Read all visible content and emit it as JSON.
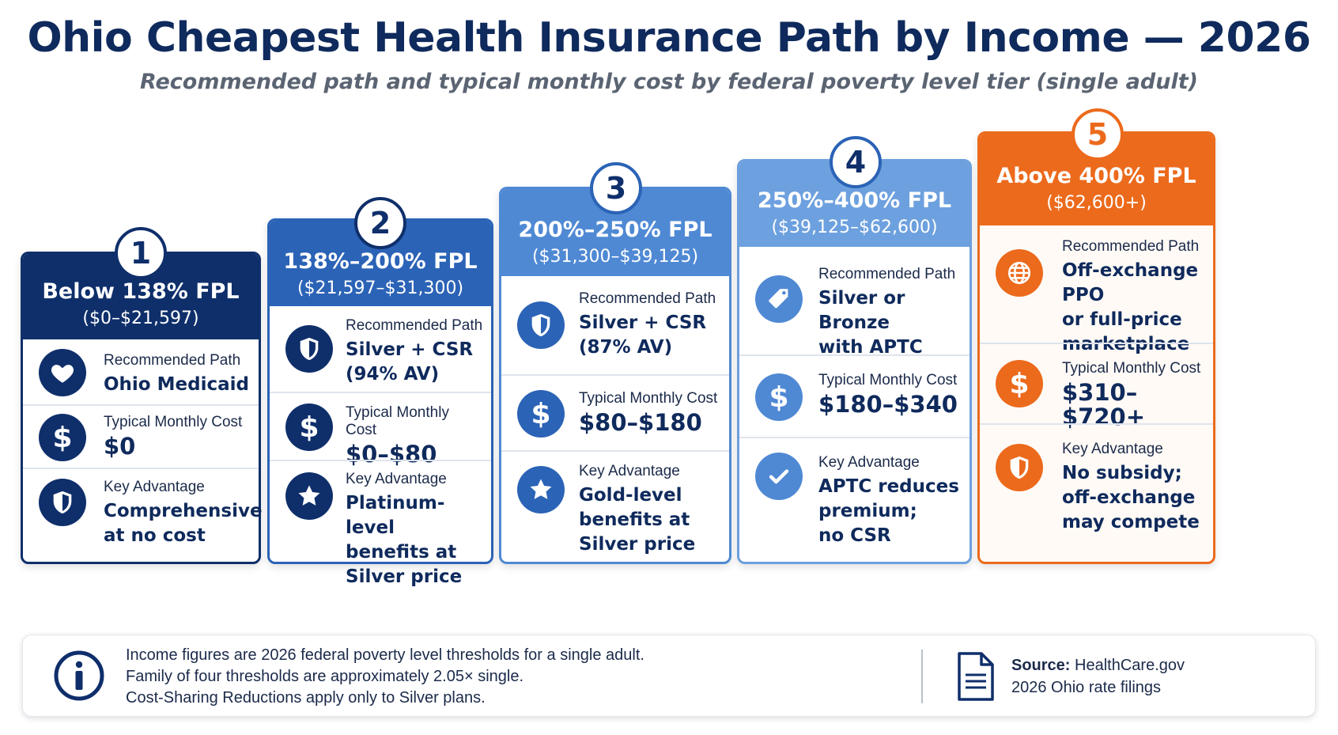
{
  "header": {
    "title": "Ohio Cheapest Health Insurance Path by Income — 2026",
    "subtitle": "Recommended path and typical monthly cost by federal poverty level tier (single adult)"
  },
  "row_labels": {
    "path": "Recommended Path",
    "cost": "Typical Monthly Cost",
    "advantage": "Key Advantage"
  },
  "colors": {
    "tier1": "#0f2f6b",
    "tier2": "#2b63b6",
    "tier3": "#4f89d4",
    "tier4": "#6da0de",
    "tier5": "#ec6a1c"
  },
  "tiers": [
    {
      "number": "1",
      "label": "Below 138% FPL",
      "range": "($0–$21,597)",
      "path": [
        "Ohio Medicaid"
      ],
      "path_icon": "heart-icon",
      "cost": "$0",
      "advantage": [
        "Comprehensive",
        "at no cost"
      ],
      "advantage_icon": "shield-icon"
    },
    {
      "number": "2",
      "label": "138%–200% FPL",
      "range": "($21,597–$31,300)",
      "path": [
        "Silver + CSR",
        "(94% AV)"
      ],
      "path_icon": "shield-icon",
      "cost": "$0–$80",
      "advantage": [
        "Platinum-level",
        "benefits at",
        "Silver price"
      ],
      "advantage_icon": "star-icon"
    },
    {
      "number": "3",
      "label": "200%–250% FPL",
      "range": "($31,300–$39,125)",
      "path": [
        "Silver + CSR",
        "(87% AV)"
      ],
      "path_icon": "shield-icon",
      "cost": "$80–$180",
      "advantage": [
        "Gold-level",
        "benefits at",
        "Silver price"
      ],
      "advantage_icon": "star-icon"
    },
    {
      "number": "4",
      "label": "250%–400% FPL",
      "range": "($39,125–$62,600)",
      "path": [
        "Silver or Bronze",
        "with APTC"
      ],
      "path_icon": "price-tag-icon",
      "cost": "$180–$340",
      "advantage": [
        "APTC reduces",
        "premium;",
        "no CSR"
      ],
      "advantage_icon": "checkmark-icon"
    },
    {
      "number": "5",
      "label": "Above 400% FPL",
      "range": "($62,600+)",
      "path": [
        "Off-exchange PPO",
        "or full-price",
        "marketplace"
      ],
      "path_icon": "globe-icon",
      "cost": "$310–$720+",
      "advantage": [
        "No subsidy;",
        "off-exchange",
        "may compete"
      ],
      "advantage_icon": "shield-icon"
    }
  ],
  "footer": {
    "notes": [
      "Income figures are 2026 federal poverty level thresholds for a single adult.",
      "Family of four thresholds are approximately 2.05× single.",
      "Cost-Sharing Reductions apply only to Silver plans."
    ],
    "source_label": "Source:",
    "source_text": "HealthCare.gov",
    "source_line2": "2026 Ohio rate filings"
  }
}
